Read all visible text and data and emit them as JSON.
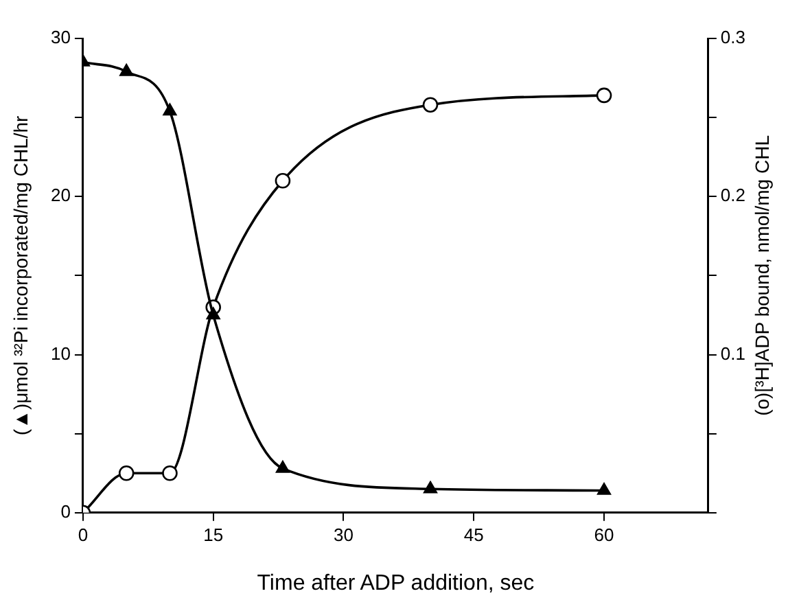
{
  "chart_data": {
    "type": "line",
    "xlabel": "Time after ADP addition, sec",
    "ylabel": "(▲)μmol ³²Pi incorporated/mg CHL/hr",
    "y2label": "(o)[³H]ADP bound, nmol/mg CHL",
    "x": [
      0,
      5,
      10,
      15,
      23,
      40,
      60
    ],
    "series": [
      {
        "color": "#000000",
        "marker": "triangle",
        "values": [
          28.5,
          27.9,
          25.4,
          12.5,
          2.8,
          1.5,
          1.4
        ]
      },
      {
        "color": "#000000",
        "marker": "circle",
        "axis": "y2",
        "values": [
          0,
          0.025,
          0.025,
          0.13,
          0.21,
          0.258,
          0.264
        ]
      }
    ],
    "xlim": [
      0,
      72
    ],
    "xticks": [
      0,
      15,
      30,
      45,
      60
    ],
    "ylim": [
      0,
      30
    ],
    "yticks": [
      0,
      {
        "value": 5,
        "label": null
      },
      10,
      {
        "value": 15,
        "label": null
      },
      20,
      {
        "value": 25,
        "label": null
      },
      30
    ],
    "y2lim": [
      0,
      0.3
    ],
    "y2ticks": [
      {
        "value": 0,
        "label": null
      },
      {
        "value": 0.05,
        "label": null
      },
      0.1,
      {
        "value": 0.15,
        "label": null
      },
      0.2,
      {
        "value": 0.25,
        "label": null
      },
      0.3
    ],
    "grid": false,
    "legend": false,
    "line_style": "solid"
  }
}
